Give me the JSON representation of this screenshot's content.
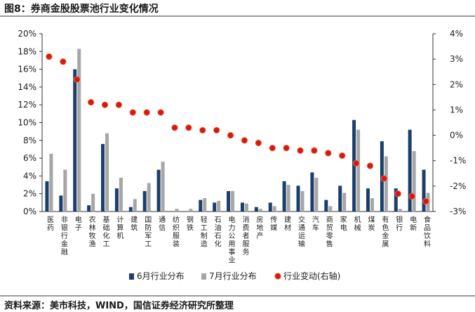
{
  "figure_title": "图8：券商金股股票池行业变化情况",
  "source_note": "资料来源：美市科技，WIND，国信证券经济研究所整理",
  "colors": {
    "june": "#1b3f6b",
    "july": "#a6a6a6",
    "change": "#d21c11"
  },
  "chart_data": {
    "type": "bar",
    "title": "",
    "xlabel": "",
    "ylabel": "",
    "y_ticks": [
      "20%",
      "18%",
      "16%",
      "14%",
      "12%",
      "10%",
      "8%",
      "6%",
      "4%",
      "2%",
      "0%"
    ],
    "y2_ticks": [
      "4%",
      "3%",
      "2%",
      "1%",
      "0%",
      "-1%",
      "-2%",
      "-3%"
    ],
    "ylim": [
      0,
      20
    ],
    "y2lim": [
      -3,
      4
    ],
    "grid": false,
    "legend_position": "bottom",
    "categories": [
      "医药",
      "非银行金融",
      "电子",
      "农林牧渔",
      "基础化工",
      "计算机",
      "建筑",
      "国防军工",
      "通信",
      "纺织服装",
      "钢铁",
      "轻工制造",
      "石油石化",
      "电力公用事业",
      "消费者服务",
      "房地产",
      "传媒",
      "建材",
      "交通运输",
      "汽车",
      "商贸零售",
      "家电",
      "机械",
      "煤炭",
      "有色金属",
      "银行",
      "电新",
      "食品饮料"
    ],
    "series": [
      {
        "name": "6月行业分布",
        "kind": "bar",
        "axis": "left",
        "values": [
          3.4,
          1.8,
          16.0,
          0.7,
          7.6,
          2.6,
          0.5,
          2.3,
          4.7,
          0.0,
          0.0,
          1.3,
          1.0,
          2.3,
          1.0,
          0.5,
          1.0,
          3.4,
          2.9,
          4.4,
          1.3,
          2.9,
          10.3,
          2.6,
          7.9,
          2.6,
          9.2,
          4.7
        ]
      },
      {
        "name": "7月行业分布",
        "kind": "bar",
        "axis": "left",
        "values": [
          6.5,
          4.7,
          18.3,
          2.0,
          8.8,
          3.8,
          1.4,
          3.2,
          5.6,
          0.3,
          0.3,
          1.5,
          1.2,
          2.3,
          0.9,
          0.3,
          0.6,
          3.0,
          2.3,
          3.8,
          0.6,
          2.1,
          9.2,
          1.5,
          6.2,
          0.3,
          6.8,
          2.1
        ]
      },
      {
        "name": "行业变动(右轴)",
        "kind": "scatter",
        "axis": "right",
        "values": [
          3.1,
          2.9,
          2.2,
          1.3,
          1.2,
          1.2,
          0.9,
          0.9,
          0.9,
          0.3,
          0.3,
          0.2,
          0.2,
          0.0,
          -0.2,
          -0.3,
          -0.5,
          -0.5,
          -0.6,
          -0.6,
          -0.7,
          -0.8,
          -1.1,
          -1.2,
          -1.7,
          -2.3,
          -2.4,
          -2.6
        ]
      }
    ]
  }
}
